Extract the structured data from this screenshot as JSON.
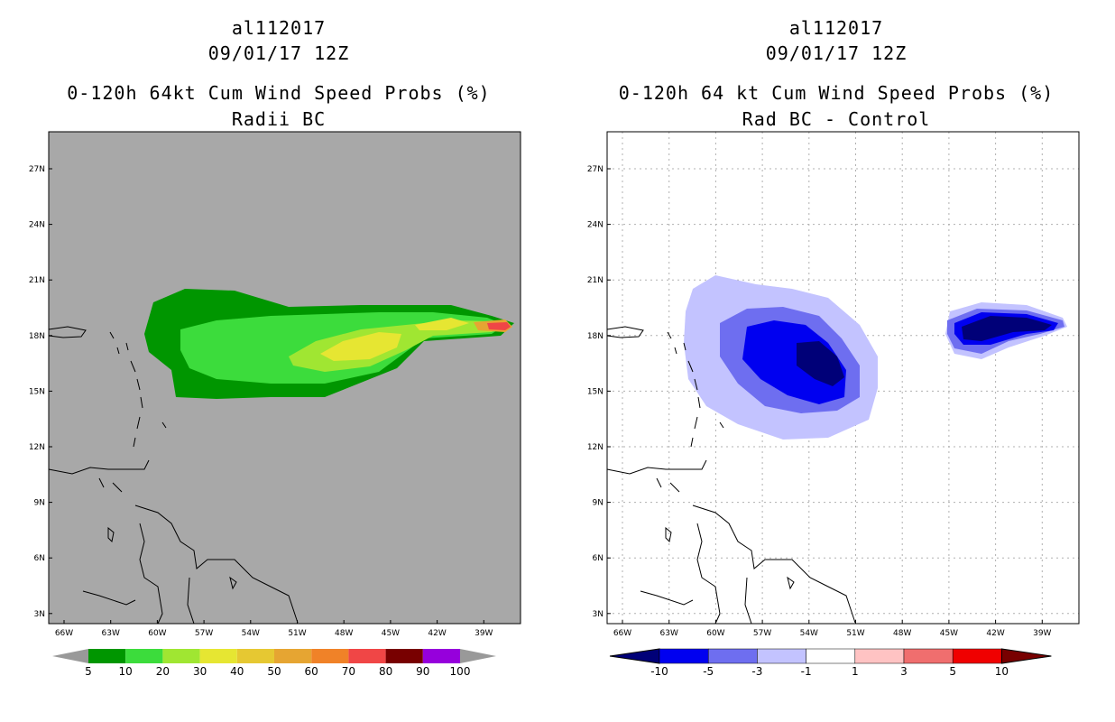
{
  "panels": [
    {
      "storm_id": "al112017",
      "datetime": "09/01/17 12Z",
      "product": "0-120h 64kt Cum Wind Speed Probs (%)",
      "subtitle": "Radii BC",
      "background": "#a8a8a8",
      "lat_labels": [
        "27N",
        "24N",
        "21N",
        "18N",
        "15N",
        "12N",
        "9N",
        "6N",
        "3N"
      ],
      "lon_labels": [
        "66W",
        "63W",
        "60W",
        "57W",
        "54W",
        "51W",
        "48W",
        "45W",
        "42W",
        "39W"
      ],
      "colorbar": {
        "colors": [
          "#999999",
          "#009600",
          "#3cdc3c",
          "#a0e632",
          "#e6e632",
          "#e6c832",
          "#e6a532",
          "#f08228",
          "#f04646",
          "#780000",
          "#9600dc",
          "#999999"
        ],
        "labels": [
          "5",
          "10",
          "20",
          "30",
          "40",
          "50",
          "60",
          "70",
          "80",
          "90",
          "100"
        ]
      }
    },
    {
      "storm_id": "al112017",
      "datetime": "09/01/17 12Z",
      "product": "0-120h 64 kt Cum Wind Speed Probs (%)",
      "subtitle": "Rad BC - Control",
      "background": "#ffffff",
      "lat_labels": [
        "27N",
        "24N",
        "21N",
        "18N",
        "15N",
        "12N",
        "9N",
        "6N",
        "3N"
      ],
      "lon_labels": [
        "66W",
        "63W",
        "60W",
        "57W",
        "54W",
        "51W",
        "48W",
        "45W",
        "42W",
        "39W"
      ],
      "colorbar": {
        "colors": [
          "#000078",
          "#0000f0",
          "#6e6ef0",
          "#c3c3ff",
          "#ffffff",
          "#ffc3c3",
          "#f06e6e",
          "#f00000",
          "#780000"
        ],
        "labels": [
          "-10",
          "-5",
          "-3",
          "-1",
          "1",
          "3",
          "5",
          "10"
        ]
      }
    }
  ]
}
